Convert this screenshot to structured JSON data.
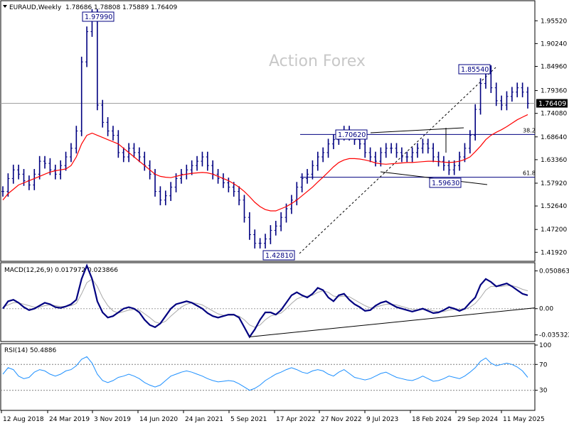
{
  "chart_data": [
    {
      "type": "line",
      "panel": "price",
      "title": "EURAUD,Weekly",
      "ohlc": [
        "1.78686",
        "1.78808",
        "1.75889",
        "1.76409"
      ],
      "watermark": "Action Forex",
      "ylim": [
        1.4,
        2.0
      ],
      "y_ticks": [
        "1.95520",
        "1.90240",
        "1.84960",
        "1.79360",
        "1.74080",
        "1.68640",
        "1.63360",
        "1.57920",
        "1.52640",
        "1.47200",
        "1.41920"
      ],
      "last_price_label": "1.76409",
      "last_price": 1.76409,
      "colors": {
        "candles": "#000080",
        "ma": "#ff0000",
        "retracement": "#000080",
        "grid_line": "#808080"
      },
      "series": [
        {
          "values": [
            1.56,
            1.59,
            1.61,
            1.6,
            1.585,
            1.575,
            1.6,
            1.63,
            1.625,
            1.61,
            1.6,
            1.62,
            1.64,
            1.66,
            1.7,
            1.86,
            1.93,
            1.97,
            1.76,
            1.72,
            1.7,
            1.69,
            1.65,
            1.64,
            1.66,
            1.65,
            1.64,
            1.62,
            1.6,
            1.56,
            1.54,
            1.55,
            1.57,
            1.59,
            1.6,
            1.61,
            1.62,
            1.63,
            1.64,
            1.62,
            1.6,
            1.59,
            1.58,
            1.57,
            1.56,
            1.54,
            1.5,
            1.46,
            1.44,
            1.44,
            1.45,
            1.47,
            1.48,
            1.5,
            1.52,
            1.54,
            1.57,
            1.59,
            1.6,
            1.62,
            1.64,
            1.65,
            1.67,
            1.68,
            1.69,
            1.7,
            1.69,
            1.68,
            1.67,
            1.65,
            1.64,
            1.63,
            1.65,
            1.66,
            1.66,
            1.65,
            1.64,
            1.64,
            1.65,
            1.66,
            1.67,
            1.66,
            1.64,
            1.63,
            1.62,
            1.61,
            1.62,
            1.64,
            1.66,
            1.69,
            1.75,
            1.81,
            1.84,
            1.8,
            1.77,
            1.76,
            1.78,
            1.79,
            1.8,
            1.79,
            1.764
          ]
        },
        {
          "values": [
            1.54,
            1.555,
            1.565,
            1.575,
            1.58,
            1.585,
            1.59,
            1.595,
            1.6,
            1.605,
            1.608,
            1.61,
            1.612,
            1.62,
            1.64,
            1.67,
            1.69,
            1.695,
            1.69,
            1.685,
            1.68,
            1.675,
            1.67,
            1.66,
            1.65,
            1.64,
            1.63,
            1.62,
            1.61,
            1.6,
            1.595,
            1.593,
            1.592,
            1.595,
            1.598,
            1.6,
            1.602,
            1.603,
            1.604,
            1.603,
            1.6,
            1.595,
            1.59,
            1.585,
            1.578,
            1.57,
            1.56,
            1.548,
            1.535,
            1.525,
            1.518,
            1.515,
            1.515,
            1.52,
            1.525,
            1.532,
            1.54,
            1.55,
            1.56,
            1.57,
            1.582,
            1.593,
            1.605,
            1.617,
            1.627,
            1.633,
            1.636,
            1.636,
            1.635,
            1.633,
            1.63,
            1.626,
            1.624,
            1.623,
            1.624,
            1.625,
            1.626,
            1.627,
            1.627,
            1.628,
            1.629,
            1.63,
            1.63,
            1.629,
            1.628,
            1.627,
            1.628,
            1.63,
            1.634,
            1.64,
            1.652,
            1.665,
            1.68,
            1.69,
            1.697,
            1.703,
            1.71,
            1.718,
            1.726,
            1.732,
            1.738
          ]
        }
      ],
      "callouts": [
        {
          "label": "1.97990",
          "value": 1.9799
        },
        {
          "label": "1.85540",
          "value": 1.8554
        },
        {
          "label": "1.70620",
          "value": 1.7062
        },
        {
          "label": "1.59630",
          "value": 1.5963
        },
        {
          "label": "1.42810",
          "value": 1.4281
        }
      ],
      "retracement_levels": [
        {
          "label": "38.2",
          "value": 1.692
        },
        {
          "label": "61.8",
          "value": 1.593
        }
      ]
    },
    {
      "type": "line",
      "panel": "macd",
      "title": "MACD(12,26,9) 0.017972 0.023866",
      "ylim": [
        -0.0433,
        0.06
      ],
      "y_ticks": [
        "0.050863",
        "0.00",
        "-0.035322"
      ],
      "colors": {
        "macd": "#000080",
        "signal": "#a9a9a9",
        "trendline": "#000000"
      },
      "series": [
        {
          "values": [
            0.0,
            0.01,
            0.012,
            0.008,
            0.002,
            -0.002,
            0.0,
            0.004,
            0.008,
            0.006,
            0.002,
            0.001,
            0.003,
            0.006,
            0.012,
            0.04,
            0.058,
            0.04,
            0.01,
            -0.005,
            -0.012,
            -0.01,
            -0.005,
            0.0,
            0.002,
            0.0,
            -0.005,
            -0.015,
            -0.022,
            -0.025,
            -0.02,
            -0.01,
            0.0,
            0.006,
            0.008,
            0.01,
            0.008,
            0.004,
            0.0,
            -0.006,
            -0.01,
            -0.012,
            -0.01,
            -0.008,
            -0.008,
            -0.012,
            -0.025,
            -0.038,
            -0.028,
            -0.015,
            -0.005,
            -0.005,
            -0.008,
            -0.002,
            0.008,
            0.018,
            0.022,
            0.018,
            0.015,
            0.02,
            0.028,
            0.025,
            0.015,
            0.01,
            0.018,
            0.02,
            0.012,
            0.006,
            0.002,
            -0.003,
            -0.002,
            0.004,
            0.008,
            0.01,
            0.006,
            0.002,
            0.0,
            -0.002,
            -0.004,
            -0.002,
            0.0,
            -0.003,
            -0.006,
            -0.005,
            -0.002,
            0.002,
            0.0,
            -0.003,
            0.0,
            0.008,
            0.015,
            0.032,
            0.04,
            0.036,
            0.03,
            0.032,
            0.034,
            0.03,
            0.025,
            0.02,
            0.018
          ]
        },
        {
          "values": [
            0.002,
            0.005,
            0.008,
            0.008,
            0.006,
            0.004,
            0.002,
            0.002,
            0.004,
            0.005,
            0.004,
            0.003,
            0.003,
            0.004,
            0.007,
            0.02,
            0.035,
            0.04,
            0.03,
            0.015,
            0.004,
            -0.003,
            -0.006,
            -0.004,
            -0.002,
            -0.001,
            -0.002,
            -0.007,
            -0.012,
            -0.018,
            -0.02,
            -0.017,
            -0.01,
            -0.004,
            0.002,
            0.006,
            0.008,
            0.007,
            0.005,
            0.001,
            -0.003,
            -0.007,
            -0.009,
            -0.009,
            -0.009,
            -0.01,
            -0.015,
            -0.022,
            -0.025,
            -0.022,
            -0.015,
            -0.01,
            -0.008,
            -0.006,
            0.0,
            0.007,
            0.013,
            0.016,
            0.017,
            0.018,
            0.022,
            0.024,
            0.022,
            0.017,
            0.016,
            0.017,
            0.016,
            0.012,
            0.008,
            0.004,
            0.001,
            0.002,
            0.004,
            0.006,
            0.006,
            0.005,
            0.003,
            0.001,
            -0.001,
            -0.002,
            -0.001,
            -0.001,
            -0.003,
            -0.004,
            -0.004,
            -0.002,
            -0.001,
            -0.001,
            -0.001,
            0.002,
            0.007,
            0.015,
            0.025,
            0.03,
            0.03,
            0.03,
            0.031,
            0.031,
            0.029,
            0.026,
            0.024
          ]
        }
      ],
      "trendline": {
        "from": [
          47,
          -0.038
        ],
        "to": [
          100,
          0.001
        ]
      }
    },
    {
      "type": "line",
      "panel": "rsi",
      "title": "RSI(14) 50.4886",
      "ylim": [
        0,
        100
      ],
      "y_ticks": [
        "100",
        "70",
        "30"
      ],
      "levels": [
        70,
        30
      ],
      "colors": {
        "rsi": "#1e90ff",
        "level": "#808080"
      },
      "series": [
        {
          "values": [
            55,
            65,
            62,
            52,
            48,
            50,
            58,
            62,
            60,
            55,
            52,
            55,
            60,
            62,
            68,
            78,
            82,
            72,
            55,
            45,
            42,
            45,
            50,
            52,
            55,
            52,
            48,
            42,
            38,
            35,
            38,
            45,
            52,
            55,
            58,
            60,
            58,
            55,
            52,
            48,
            45,
            43,
            44,
            45,
            44,
            40,
            35,
            30,
            33,
            38,
            45,
            50,
            55,
            58,
            62,
            65,
            62,
            58,
            56,
            60,
            62,
            60,
            55,
            52,
            58,
            62,
            56,
            50,
            48,
            46,
            48,
            52,
            56,
            58,
            54,
            50,
            48,
            46,
            45,
            48,
            52,
            48,
            44,
            45,
            48,
            52,
            50,
            48,
            52,
            58,
            65,
            75,
            80,
            72,
            68,
            70,
            72,
            70,
            66,
            60,
            50
          ]
        }
      ]
    }
  ],
  "x_ticks": [
    "12 Aug 2018",
    "24 Mar 2019",
    "3 Nov 2019",
    "14 Jun 2020",
    "24 Jan 2021",
    "5 Sep 2021",
    "17 Apr 2022",
    "27 Nov 2022",
    "9 Jul 2023",
    "18 Feb 2024",
    "29 Sep 2024",
    "11 May 2025"
  ],
  "ui": {
    "collapse_icon": "triangle-down-icon"
  }
}
